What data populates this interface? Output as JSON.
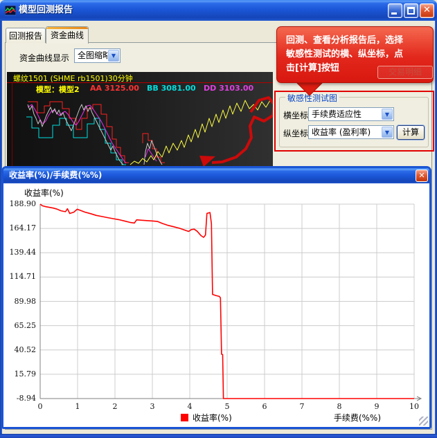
{
  "window": {
    "title": "模型回测报告",
    "controls": {
      "close_glyph": "✕"
    }
  },
  "tabs": [
    {
      "label": "回测报告",
      "active": false
    },
    {
      "label": "资金曲线",
      "active": true
    }
  ],
  "toolbar": {
    "display_label": "资金曲线显示",
    "display_value": "全图缩略"
  },
  "mini_chart": {
    "title": "螺纹1501 (SHME rb1501)30分钟",
    "model_label": "模型：模型2",
    "indicators": [
      {
        "label": "AA 3125.00",
        "color": "#ff3232"
      },
      {
        "label": "BB 3081.00",
        "color": "#00dede"
      },
      {
        "label": "DD 3103.00",
        "color": "#e040e0"
      }
    ],
    "series": [
      {
        "name": "upper-band-red",
        "type": "line",
        "color": "#ff2020",
        "width": 1,
        "points": [
          [
            30,
            43
          ],
          [
            44,
            43
          ],
          [
            44,
            59
          ],
          [
            54,
            59
          ],
          [
            54,
            49
          ],
          [
            62,
            49
          ],
          [
            62,
            43
          ],
          [
            80,
            43
          ],
          [
            80,
            53
          ],
          [
            90,
            53
          ],
          [
            90,
            67
          ],
          [
            100,
            67
          ],
          [
            100,
            83
          ],
          [
            108,
            83
          ],
          [
            108,
            67
          ],
          [
            116,
            67
          ],
          [
            116,
            53
          ],
          [
            124,
            53
          ],
          [
            124,
            47
          ],
          [
            136,
            47
          ],
          [
            136,
            61
          ],
          [
            144,
            61
          ],
          [
            144,
            79
          ],
          [
            152,
            79
          ],
          [
            152,
            97
          ],
          [
            158,
            97
          ],
          [
            158,
            109
          ],
          [
            164,
            109
          ],
          [
            164,
            121
          ],
          [
            170,
            121
          ],
          [
            170,
            131
          ],
          [
            176,
            131
          ]
        ]
      },
      {
        "name": "lower-band-cyan",
        "type": "line",
        "color": "#00e0e0",
        "width": 1,
        "points": [
          [
            28,
            65
          ],
          [
            36,
            65
          ],
          [
            36,
            81
          ],
          [
            46,
            81
          ],
          [
            46,
            95
          ],
          [
            66,
            95
          ],
          [
            66,
            77
          ],
          [
            76,
            77
          ],
          [
            76,
            67
          ],
          [
            86,
            67
          ],
          [
            86,
            77
          ],
          [
            96,
            77
          ],
          [
            96,
            95
          ],
          [
            116,
            95
          ],
          [
            116,
            75
          ],
          [
            126,
            75
          ],
          [
            126,
            67
          ],
          [
            134,
            67
          ],
          [
            134,
            83
          ],
          [
            142,
            83
          ],
          [
            142,
            103
          ],
          [
            150,
            103
          ],
          [
            150,
            117
          ],
          [
            158,
            117
          ],
          [
            158,
            127
          ],
          [
            166,
            127
          ],
          [
            166,
            134
          ],
          [
            172,
            134
          ]
        ]
      },
      {
        "name": "mid-line-magenta",
        "type": "line",
        "color": "#f02cf0",
        "width": 1,
        "points": [
          [
            30,
            51
          ],
          [
            36,
            47
          ],
          [
            42,
            57
          ],
          [
            48,
            69
          ],
          [
            52,
            75
          ],
          [
            56,
            71
          ],
          [
            60,
            63
          ],
          [
            64,
            57
          ],
          [
            68,
            55
          ],
          [
            72,
            59
          ],
          [
            76,
            63
          ],
          [
            80,
            59
          ],
          [
            84,
            57
          ],
          [
            88,
            61
          ],
          [
            92,
            67
          ],
          [
            96,
            73
          ],
          [
            100,
            77
          ],
          [
            104,
            71
          ],
          [
            108,
            63
          ],
          [
            112,
            55
          ],
          [
            116,
            49
          ],
          [
            120,
            48
          ],
          [
            124,
            53
          ],
          [
            128,
            59
          ],
          [
            132,
            65
          ],
          [
            136,
            71
          ],
          [
            140,
            79
          ],
          [
            144,
            87
          ],
          [
            148,
            95
          ],
          [
            152,
            103
          ],
          [
            156,
            109
          ],
          [
            160,
            115
          ],
          [
            164,
            121
          ],
          [
            168,
            127
          ],
          [
            172,
            132
          ]
        ]
      },
      {
        "name": "price-gray",
        "type": "line",
        "color": "#c8c8c8",
        "width": 1,
        "points": [
          [
            30,
            47
          ],
          [
            33,
            55
          ],
          [
            36,
            49
          ],
          [
            39,
            61
          ],
          [
            42,
            67
          ],
          [
            45,
            75
          ],
          [
            48,
            69
          ],
          [
            51,
            79
          ],
          [
            54,
            71
          ],
          [
            57,
            63
          ],
          [
            60,
            57
          ],
          [
            63,
            51
          ],
          [
            66,
            59
          ],
          [
            69,
            53
          ],
          [
            72,
            61
          ],
          [
            75,
            55
          ],
          [
            78,
            63
          ],
          [
            81,
            59
          ],
          [
            84,
            67
          ],
          [
            87,
            73
          ],
          [
            90,
            79
          ],
          [
            93,
            85
          ],
          [
            96,
            77
          ],
          [
            99,
            69
          ],
          [
            102,
            61
          ],
          [
            105,
            53
          ],
          [
            108,
            47
          ],
          [
            111,
            55
          ],
          [
            114,
            49
          ],
          [
            117,
            57
          ],
          [
            120,
            51
          ],
          [
            123,
            59
          ],
          [
            126,
            65
          ],
          [
            129,
            71
          ],
          [
            132,
            77
          ],
          [
            135,
            83
          ],
          [
            138,
            89
          ],
          [
            141,
            95
          ],
          [
            144,
            101
          ],
          [
            147,
            107
          ],
          [
            150,
            113
          ],
          [
            153,
            107
          ],
          [
            156,
            115
          ],
          [
            159,
            121
          ],
          [
            162,
            127
          ],
          [
            165,
            131
          ],
          [
            168,
            134
          ]
        ]
      },
      {
        "name": "upper-band-red-2",
        "type": "line",
        "color": "#ff2020",
        "width": 1,
        "points": [
          [
            196,
            103
          ],
          [
            196,
            89
          ],
          [
            204,
            89
          ],
          [
            204,
            99
          ],
          [
            210,
            99
          ],
          [
            210,
            111
          ],
          [
            216,
            111
          ],
          [
            216,
            123
          ],
          [
            222,
            123
          ],
          [
            222,
            131
          ],
          [
            228,
            131
          ]
        ]
      },
      {
        "name": "price-gray-2",
        "type": "line",
        "color": "#c8c8c8",
        "width": 1,
        "points": [
          [
            198,
            134
          ],
          [
            200,
            115
          ],
          [
            203,
            103
          ],
          [
            206,
            111
          ],
          [
            209,
            99
          ],
          [
            212,
            107
          ],
          [
            215,
            115
          ],
          [
            218,
            123
          ],
          [
            221,
            129
          ],
          [
            224,
            134
          ]
        ]
      },
      {
        "name": "mid-line-magenta-2",
        "type": "line",
        "color": "#f02cf0",
        "width": 1,
        "points": [
          [
            200,
            123
          ],
          [
            204,
            111
          ],
          [
            208,
            117
          ],
          [
            212,
            123
          ],
          [
            216,
            129
          ]
        ]
      },
      {
        "name": "equity-yellow",
        "type": "line",
        "color": "#ffff44",
        "width": 1,
        "points": [
          [
            178,
            134
          ],
          [
            184,
            129
          ],
          [
            190,
            132
          ],
          [
            196,
            125
          ],
          [
            202,
            130
          ],
          [
            208,
            121
          ],
          [
            212,
            127
          ],
          [
            218,
            115
          ],
          [
            224,
            123
          ],
          [
            230,
            107
          ],
          [
            234,
            117
          ],
          [
            240,
            103
          ],
          [
            246,
            113
          ],
          [
            252,
            99
          ],
          [
            256,
            109
          ],
          [
            262,
            91
          ],
          [
            266,
            101
          ],
          [
            272,
            83
          ],
          [
            276,
            95
          ],
          [
            282,
            75
          ],
          [
            286,
            87
          ],
          [
            292,
            67
          ],
          [
            296,
            79
          ],
          [
            302,
            61
          ],
          [
            306,
            73
          ],
          [
            312,
            55
          ],
          [
            316,
            67
          ],
          [
            322,
            49
          ],
          [
            326,
            61
          ],
          [
            332,
            45
          ],
          [
            338,
            57
          ],
          [
            344,
            41
          ],
          [
            350,
            53
          ],
          [
            356,
            47
          ],
          [
            362,
            55
          ],
          [
            368,
            43
          ],
          [
            374,
            51
          ],
          [
            380,
            41
          ]
        ]
      },
      {
        "name": "hand-drawn-arrow",
        "type": "line",
        "color": "#cc0a0a",
        "width": 4,
        "points": [
          [
            352,
            58
          ],
          [
            364,
            41
          ],
          [
            378,
            37
          ],
          [
            386,
            47
          ],
          [
            384,
            63
          ],
          [
            371,
            71
          ],
          [
            357,
            65
          ],
          [
            351,
            78
          ],
          [
            353,
            95
          ],
          [
            345,
            111
          ],
          [
            331,
            123
          ],
          [
            311,
            130
          ],
          [
            296,
            131
          ]
        ]
      },
      {
        "name": "hand-drawn-arrowhead",
        "type": "polygon",
        "color": "#cc0a0a",
        "points": [
          [
            301,
            122
          ],
          [
            284,
            137
          ],
          [
            278,
            121
          ]
        ]
      }
    ]
  },
  "annotation": {
    "lines": [
      "回测、查看分析报告后，选择",
      "敏感性测试的横、纵坐标，点",
      "击[计算]按钮"
    ],
    "color": "#e02218"
  },
  "trade_detail_button": "交易明细",
  "sensitivity": {
    "group_title": "敏感性测试图",
    "x_axis_label": "横坐标",
    "x_axis_value": "手续费适应性",
    "y_axis_label": "纵坐标",
    "y_axis_value": "收益率 (盈利率)",
    "calc_button": "计算"
  },
  "chart_window": {
    "title": "收益率(%)/手续费(%%)"
  },
  "chart_data": {
    "type": "line",
    "title": "收益率(%)/手续费(%%)",
    "ylabel": "收益率(%)",
    "xlabel": "手续费(%%)",
    "xlim": [
      0,
      10
    ],
    "ylim": [
      -8.94,
      188.9
    ],
    "grid": true,
    "y_tick_labels": [
      "188.90",
      "164.17",
      "139.44",
      "114.71",
      "89.98",
      "65.25",
      "40.52",
      "15.79",
      "-8.94"
    ],
    "x_tick_labels": [
      "0",
      "1",
      "2",
      "3",
      "4",
      "5",
      "6",
      "7",
      "8",
      "9",
      "10"
    ],
    "legend": [
      {
        "label": "收益率(%)",
        "color": "#ff0000"
      }
    ],
    "legend_position": "bottom-center",
    "series": [
      {
        "name": "收益率(%)",
        "color": "#ff0000",
        "points": [
          [
            0,
            188.9
          ],
          [
            0.06,
            187.2
          ],
          [
            0.15,
            186.3
          ],
          [
            0.25,
            185.6
          ],
          [
            0.35,
            184.9
          ],
          [
            0.45,
            183.8
          ],
          [
            0.55,
            182.2
          ],
          [
            0.63,
            181.5
          ],
          [
            0.68,
            181.3
          ],
          [
            0.73,
            184.2
          ],
          [
            0.79,
            179.4
          ],
          [
            0.9,
            180.7
          ],
          [
            0.99,
            183.7
          ],
          [
            1.08,
            182.5
          ],
          [
            1.2,
            180.7
          ],
          [
            1.35,
            179.2
          ],
          [
            1.5,
            177.4
          ],
          [
            1.65,
            176.3
          ],
          [
            1.8,
            175.2
          ],
          [
            1.95,
            174.1
          ],
          [
            2.1,
            173.1
          ],
          [
            2.25,
            171.8
          ],
          [
            2.4,
            170.3
          ],
          [
            2.52,
            169.7
          ],
          [
            2.58,
            172.9
          ],
          [
            2.72,
            172.5
          ],
          [
            2.88,
            172.1
          ],
          [
            3.02,
            171.7
          ],
          [
            3.14,
            171.2
          ],
          [
            3.27,
            169.2
          ],
          [
            3.42,
            167.3
          ],
          [
            3.57,
            165.9
          ],
          [
            3.72,
            164.4
          ],
          [
            3.87,
            162.4
          ],
          [
            3.97,
            161.1
          ],
          [
            4.04,
            163.0
          ],
          [
            4.12,
            163.4
          ],
          [
            4.2,
            161.2
          ],
          [
            4.3,
            156.9
          ],
          [
            4.37,
            155.1
          ],
          [
            4.42,
            157.5
          ],
          [
            4.46,
            179.5
          ],
          [
            4.54,
            180.3
          ],
          [
            4.58,
            169.0
          ],
          [
            4.61,
            97.0
          ],
          [
            4.7,
            95.9
          ],
          [
            4.79,
            95.0
          ],
          [
            4.82,
            93.5
          ],
          [
            4.85,
            36.2
          ],
          [
            4.88,
            35.8
          ],
          [
            4.9,
            -8.94
          ],
          [
            10,
            -8.94
          ]
        ]
      }
    ]
  }
}
